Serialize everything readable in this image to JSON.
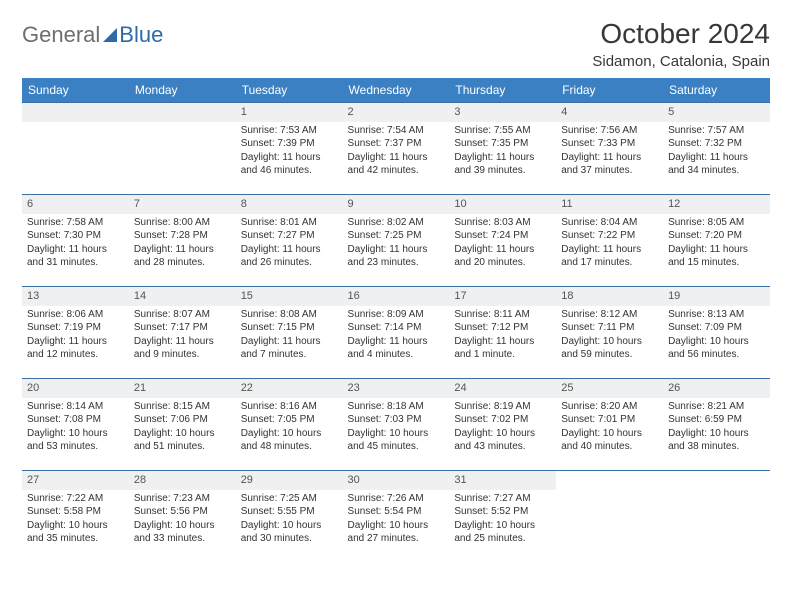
{
  "logo": {
    "part1": "General",
    "part2": "Blue"
  },
  "title": "October 2024",
  "location": "Sidamon, Catalonia, Spain",
  "calendar": {
    "header_bg": "#3a80c3",
    "header_fg": "#ffffff",
    "cell_border": "#3a6fa6",
    "daynum_bg": "#eef0f1",
    "columns": [
      "Sunday",
      "Monday",
      "Tuesday",
      "Wednesday",
      "Thursday",
      "Friday",
      "Saturday"
    ],
    "weeks": [
      [
        null,
        null,
        {
          "n": "1",
          "sr": "Sunrise: 7:53 AM",
          "ss": "Sunset: 7:39 PM",
          "dl1": "Daylight: 11 hours",
          "dl2": "and 46 minutes."
        },
        {
          "n": "2",
          "sr": "Sunrise: 7:54 AM",
          "ss": "Sunset: 7:37 PM",
          "dl1": "Daylight: 11 hours",
          "dl2": "and 42 minutes."
        },
        {
          "n": "3",
          "sr": "Sunrise: 7:55 AM",
          "ss": "Sunset: 7:35 PM",
          "dl1": "Daylight: 11 hours",
          "dl2": "and 39 minutes."
        },
        {
          "n": "4",
          "sr": "Sunrise: 7:56 AM",
          "ss": "Sunset: 7:33 PM",
          "dl1": "Daylight: 11 hours",
          "dl2": "and 37 minutes."
        },
        {
          "n": "5",
          "sr": "Sunrise: 7:57 AM",
          "ss": "Sunset: 7:32 PM",
          "dl1": "Daylight: 11 hours",
          "dl2": "and 34 minutes."
        }
      ],
      [
        {
          "n": "6",
          "sr": "Sunrise: 7:58 AM",
          "ss": "Sunset: 7:30 PM",
          "dl1": "Daylight: 11 hours",
          "dl2": "and 31 minutes."
        },
        {
          "n": "7",
          "sr": "Sunrise: 8:00 AM",
          "ss": "Sunset: 7:28 PM",
          "dl1": "Daylight: 11 hours",
          "dl2": "and 28 minutes."
        },
        {
          "n": "8",
          "sr": "Sunrise: 8:01 AM",
          "ss": "Sunset: 7:27 PM",
          "dl1": "Daylight: 11 hours",
          "dl2": "and 26 minutes."
        },
        {
          "n": "9",
          "sr": "Sunrise: 8:02 AM",
          "ss": "Sunset: 7:25 PM",
          "dl1": "Daylight: 11 hours",
          "dl2": "and 23 minutes."
        },
        {
          "n": "10",
          "sr": "Sunrise: 8:03 AM",
          "ss": "Sunset: 7:24 PM",
          "dl1": "Daylight: 11 hours",
          "dl2": "and 20 minutes."
        },
        {
          "n": "11",
          "sr": "Sunrise: 8:04 AM",
          "ss": "Sunset: 7:22 PM",
          "dl1": "Daylight: 11 hours",
          "dl2": "and 17 minutes."
        },
        {
          "n": "12",
          "sr": "Sunrise: 8:05 AM",
          "ss": "Sunset: 7:20 PM",
          "dl1": "Daylight: 11 hours",
          "dl2": "and 15 minutes."
        }
      ],
      [
        {
          "n": "13",
          "sr": "Sunrise: 8:06 AM",
          "ss": "Sunset: 7:19 PM",
          "dl1": "Daylight: 11 hours",
          "dl2": "and 12 minutes."
        },
        {
          "n": "14",
          "sr": "Sunrise: 8:07 AM",
          "ss": "Sunset: 7:17 PM",
          "dl1": "Daylight: 11 hours",
          "dl2": "and 9 minutes."
        },
        {
          "n": "15",
          "sr": "Sunrise: 8:08 AM",
          "ss": "Sunset: 7:15 PM",
          "dl1": "Daylight: 11 hours",
          "dl2": "and 7 minutes."
        },
        {
          "n": "16",
          "sr": "Sunrise: 8:09 AM",
          "ss": "Sunset: 7:14 PM",
          "dl1": "Daylight: 11 hours",
          "dl2": "and 4 minutes."
        },
        {
          "n": "17",
          "sr": "Sunrise: 8:11 AM",
          "ss": "Sunset: 7:12 PM",
          "dl1": "Daylight: 11 hours",
          "dl2": "and 1 minute."
        },
        {
          "n": "18",
          "sr": "Sunrise: 8:12 AM",
          "ss": "Sunset: 7:11 PM",
          "dl1": "Daylight: 10 hours",
          "dl2": "and 59 minutes."
        },
        {
          "n": "19",
          "sr": "Sunrise: 8:13 AM",
          "ss": "Sunset: 7:09 PM",
          "dl1": "Daylight: 10 hours",
          "dl2": "and 56 minutes."
        }
      ],
      [
        {
          "n": "20",
          "sr": "Sunrise: 8:14 AM",
          "ss": "Sunset: 7:08 PM",
          "dl1": "Daylight: 10 hours",
          "dl2": "and 53 minutes."
        },
        {
          "n": "21",
          "sr": "Sunrise: 8:15 AM",
          "ss": "Sunset: 7:06 PM",
          "dl1": "Daylight: 10 hours",
          "dl2": "and 51 minutes."
        },
        {
          "n": "22",
          "sr": "Sunrise: 8:16 AM",
          "ss": "Sunset: 7:05 PM",
          "dl1": "Daylight: 10 hours",
          "dl2": "and 48 minutes."
        },
        {
          "n": "23",
          "sr": "Sunrise: 8:18 AM",
          "ss": "Sunset: 7:03 PM",
          "dl1": "Daylight: 10 hours",
          "dl2": "and 45 minutes."
        },
        {
          "n": "24",
          "sr": "Sunrise: 8:19 AM",
          "ss": "Sunset: 7:02 PM",
          "dl1": "Daylight: 10 hours",
          "dl2": "and 43 minutes."
        },
        {
          "n": "25",
          "sr": "Sunrise: 8:20 AM",
          "ss": "Sunset: 7:01 PM",
          "dl1": "Daylight: 10 hours",
          "dl2": "and 40 minutes."
        },
        {
          "n": "26",
          "sr": "Sunrise: 8:21 AM",
          "ss": "Sunset: 6:59 PM",
          "dl1": "Daylight: 10 hours",
          "dl2": "and 38 minutes."
        }
      ],
      [
        {
          "n": "27",
          "sr": "Sunrise: 7:22 AM",
          "ss": "Sunset: 5:58 PM",
          "dl1": "Daylight: 10 hours",
          "dl2": "and 35 minutes."
        },
        {
          "n": "28",
          "sr": "Sunrise: 7:23 AM",
          "ss": "Sunset: 5:56 PM",
          "dl1": "Daylight: 10 hours",
          "dl2": "and 33 minutes."
        },
        {
          "n": "29",
          "sr": "Sunrise: 7:25 AM",
          "ss": "Sunset: 5:55 PM",
          "dl1": "Daylight: 10 hours",
          "dl2": "and 30 minutes."
        },
        {
          "n": "30",
          "sr": "Sunrise: 7:26 AM",
          "ss": "Sunset: 5:54 PM",
          "dl1": "Daylight: 10 hours",
          "dl2": "and 27 minutes."
        },
        {
          "n": "31",
          "sr": "Sunrise: 7:27 AM",
          "ss": "Sunset: 5:52 PM",
          "dl1": "Daylight: 10 hours",
          "dl2": "and 25 minutes."
        },
        null,
        null
      ]
    ]
  }
}
